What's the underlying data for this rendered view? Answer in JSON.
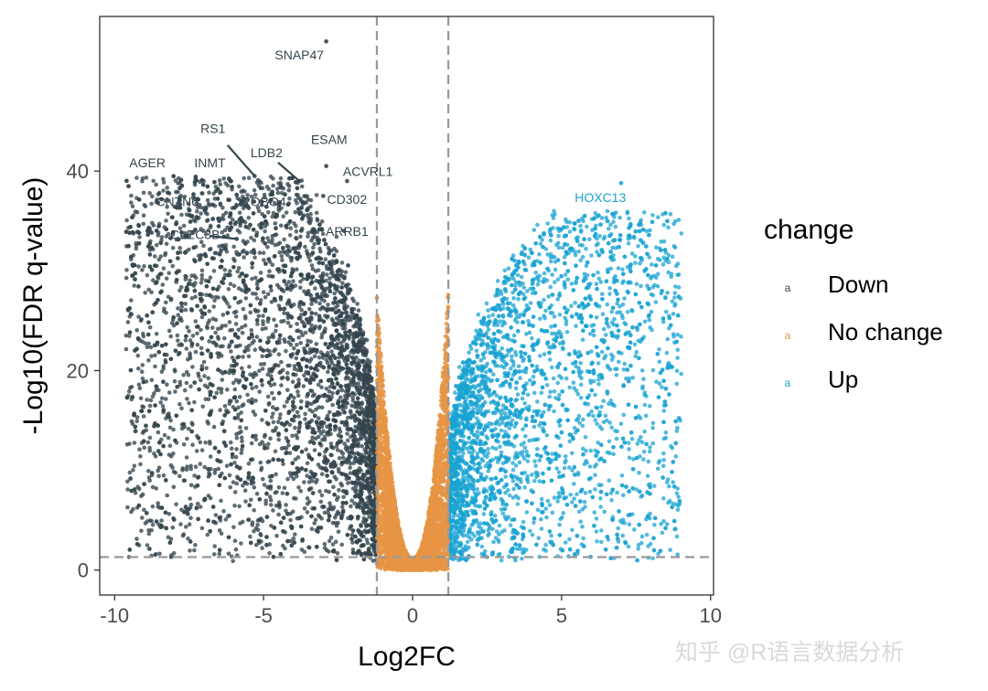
{
  "chart_data": {
    "type": "scatter",
    "subtype": "volcano",
    "xlabel": "Log2FC",
    "ylabel": "-Log10(FDR q-value)",
    "xlim": [
      -10.5,
      10.1
    ],
    "ylim": [
      -2.5,
      55.5
    ],
    "xticks": [
      -10,
      -5,
      0,
      5,
      10
    ],
    "xtick_labels": [
      "-10",
      "-5",
      "0",
      "5",
      "10"
    ],
    "yticks": [
      0,
      20,
      40
    ],
    "ytick_labels": [
      "0",
      "20",
      "40"
    ],
    "grid": false,
    "thresholds": {
      "log2fc": [
        -1.2,
        1.2
      ],
      "neg_log10_fdr": 1.3
    },
    "legend": {
      "title": "change",
      "position": "right",
      "entries": [
        {
          "label": "Down",
          "color": "#33444d",
          "key": "a"
        },
        {
          "label": "No change",
          "color": "#e69545",
          "key": "a"
        },
        {
          "label": "Up",
          "color": "#1aa3d1",
          "key": "a"
        }
      ]
    },
    "series": [
      {
        "name": "Down",
        "color": "#33444d",
        "description": "points with Log2FC < -1.2"
      },
      {
        "name": "No change",
        "color": "#e69545",
        "description": "points with |Log2FC| <= 1.2"
      },
      {
        "name": "Up",
        "color": "#1aa3d1",
        "description": "points with Log2FC > 1.2"
      }
    ],
    "annotations": [
      {
        "text": "SNAP47",
        "x": -3.8,
        "y": 51.2,
        "point": [
          -2.9,
          53.0
        ],
        "series": "Down"
      },
      {
        "text": "RS1",
        "x": -6.7,
        "y": 43.8,
        "point": [
          -5.3,
          39.5
        ],
        "series": "Down"
      },
      {
        "text": "ESAM",
        "x": -2.8,
        "y": 42.7,
        "point": [
          -2.9,
          40.5
        ],
        "series": "Down"
      },
      {
        "text": "AGER",
        "x": -8.9,
        "y": 40.4,
        "point": [
          -8.5,
          37.8
        ],
        "series": "Down"
      },
      {
        "text": "INMT",
        "x": -6.8,
        "y": 40.4,
        "point": [
          -6.6,
          38.0
        ],
        "series": "Down"
      },
      {
        "text": "LDB2",
        "x": -4.9,
        "y": 41.4,
        "point": [
          -3.8,
          39.0
        ],
        "series": "Down"
      },
      {
        "text": "ACVRL1",
        "x": -1.5,
        "y": 39.5,
        "point": [
          -2.2,
          39.0
        ],
        "series": "Down"
      },
      {
        "text": "CNTN6",
        "x": -7.9,
        "y": 36.5,
        "point": [
          -7.4,
          35.5
        ],
        "series": "Down"
      },
      {
        "text": "ROBO4",
        "x": -5.0,
        "y": 36.5,
        "point": [
          -5.1,
          38.3
        ],
        "series": "Down"
      },
      {
        "text": "CD302",
        "x": -2.2,
        "y": 36.7,
        "point": [
          -3.0,
          37.5
        ],
        "series": "Down"
      },
      {
        "text": "CLEC3B",
        "x": -7.3,
        "y": 33.2,
        "point": [
          -5.9,
          33.2
        ],
        "series": "Down"
      },
      {
        "text": "ARRB1",
        "x": -2.2,
        "y": 33.5,
        "point": [
          -2.3,
          34.0
        ],
        "series": "Down"
      },
      {
        "text": "HOXC13",
        "x": 6.3,
        "y": 36.9,
        "point": [
          7.0,
          38.8
        ],
        "series": "Up"
      }
    ]
  },
  "watermark": "知乎 @R语言数据分析"
}
